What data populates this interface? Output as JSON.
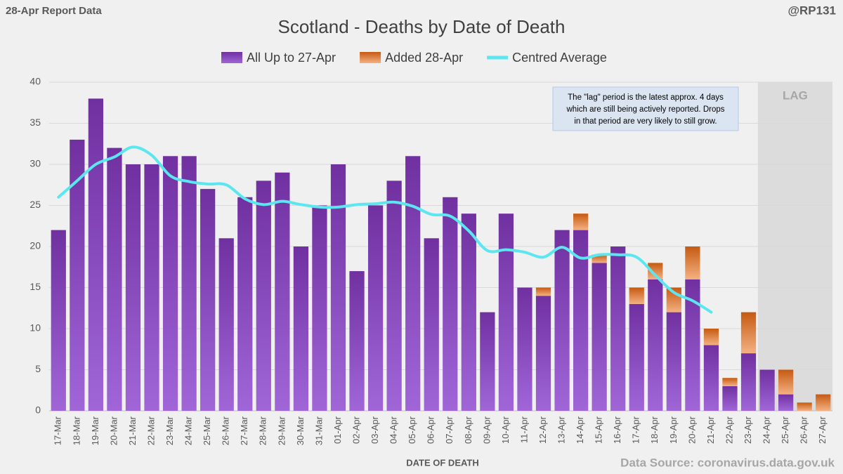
{
  "chart_data": {
    "type": "bar",
    "stacked": true,
    "title": "Scotland - Deaths by Date of Death",
    "corner_left": "28-Apr Report Data",
    "corner_right": "@RP131",
    "x_label": "DATE OF DEATH",
    "source": "Data Source: coronavirus.data.gov.uk",
    "annotation": [
      "The \"lag\" period is the latest approx. 4 days",
      "which are still being actively reported.  Drops",
      "in that period are very likely to still grow."
    ],
    "shade": {
      "label": "LAG",
      "from": "24-Apr",
      "to": "27-Apr",
      "color": "#dcdcdc"
    },
    "categories": [
      "17-Mar",
      "18-Mar",
      "19-Mar",
      "20-Mar",
      "21-Mar",
      "22-Mar",
      "23-Mar",
      "24-Mar",
      "25-Mar",
      "26-Mar",
      "27-Mar",
      "28-Mar",
      "29-Mar",
      "30-Mar",
      "31-Mar",
      "01-Apr",
      "02-Apr",
      "03-Apr",
      "04-Apr",
      "05-Apr",
      "06-Apr",
      "07-Apr",
      "08-Apr",
      "09-Apr",
      "10-Apr",
      "11-Apr",
      "12-Apr",
      "13-Apr",
      "14-Apr",
      "15-Apr",
      "16-Apr",
      "17-Apr",
      "18-Apr",
      "19-Apr",
      "20-Apr",
      "21-Apr",
      "22-Apr",
      "23-Apr",
      "24-Apr",
      "25-Apr",
      "26-Apr",
      "27-Apr"
    ],
    "series": [
      {
        "name": "All Up to 27-Apr",
        "type": "bar",
        "color": "#7030a0",
        "color2": "#a066d8",
        "values": [
          22,
          33,
          38,
          32,
          30,
          30,
          31,
          31,
          27,
          21,
          26,
          28,
          29,
          20,
          25,
          30,
          17,
          25,
          28,
          31,
          21,
          26,
          24,
          12,
          24,
          15,
          14,
          22,
          22,
          18,
          20,
          13,
          16,
          12,
          16,
          8,
          3,
          7,
          5,
          2,
          0,
          0
        ]
      },
      {
        "name": "Added 28-Apr",
        "type": "bar",
        "color": "#c55a11",
        "color2": "#f4b183",
        "values": [
          0,
          0,
          0,
          0,
          0,
          0,
          0,
          0,
          0,
          0,
          0,
          0,
          0,
          0,
          0,
          0,
          0,
          0,
          0,
          0,
          0,
          0,
          0,
          0,
          0,
          0,
          1,
          0,
          2,
          1,
          0,
          2,
          2,
          3,
          4,
          2,
          1,
          5,
          0,
          3,
          1,
          2
        ]
      },
      {
        "name": "Centred Average",
        "type": "line",
        "color": "#5ce6ef",
        "values": [
          26,
          28,
          30,
          30.9,
          32.1,
          31.1,
          28.6,
          27.9,
          27.6,
          27.5,
          25.8,
          25.1,
          25.5,
          25.1,
          24.8,
          24.8,
          25.1,
          25.2,
          25.4,
          24.9,
          23.9,
          23.7,
          21.9,
          19.5,
          19.6,
          19.3,
          18.7,
          19.9,
          18.6,
          19,
          19,
          18.7,
          16.5,
          14.4,
          13.4,
          12,
          null,
          null,
          null,
          null,
          null,
          null
        ]
      }
    ],
    "ylim": [
      0,
      40
    ],
    "yticks": [
      0,
      5,
      10,
      15,
      20,
      25,
      30,
      35,
      40
    ],
    "grid": true
  }
}
